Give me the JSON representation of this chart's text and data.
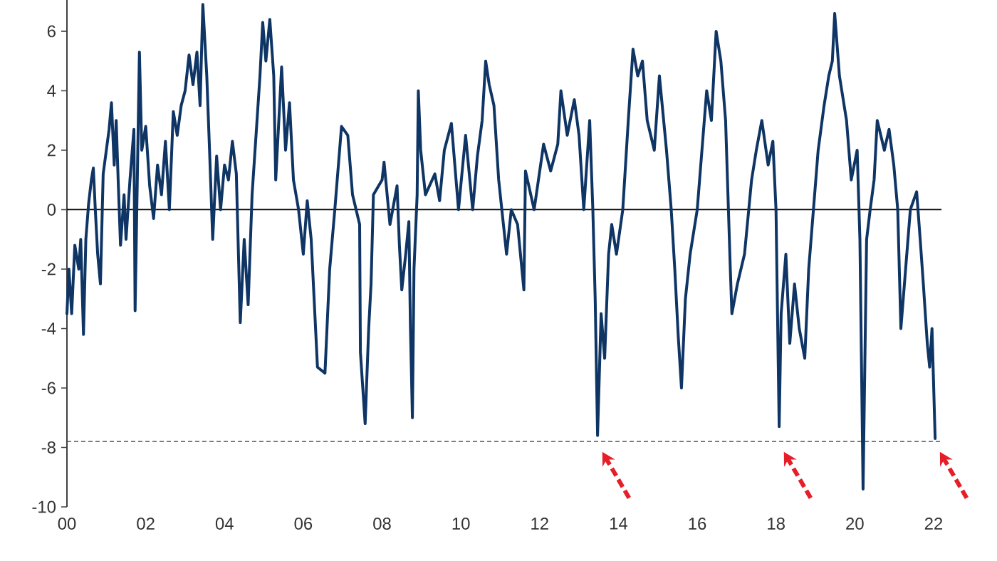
{
  "chart_data": {
    "type": "line",
    "x": [
      0.0,
      0.05,
      0.12,
      0.2,
      0.3,
      0.35,
      0.42,
      0.48,
      0.55,
      0.62,
      0.67,
      0.72,
      0.78,
      0.85,
      0.92,
      1.0,
      1.07,
      1.13,
      1.2,
      1.25,
      1.3,
      1.36,
      1.45,
      1.5,
      1.6,
      1.7,
      1.73,
      1.78,
      1.84,
      1.9,
      2.0,
      2.1,
      2.2,
      2.3,
      2.4,
      2.5,
      2.6,
      2.7,
      2.8,
      2.9,
      3.0,
      3.1,
      3.2,
      3.3,
      3.38,
      3.45,
      3.55,
      3.62,
      3.7,
      3.8,
      3.9,
      4.0,
      4.1,
      4.2,
      4.3,
      4.4,
      4.5,
      4.6,
      4.7,
      4.8,
      4.9,
      4.97,
      5.05,
      5.15,
      5.25,
      5.3,
      5.45,
      5.55,
      5.65,
      5.75,
      5.88,
      6.0,
      6.1,
      6.2,
      6.36,
      6.55,
      6.67,
      6.8,
      6.97,
      7.13,
      7.25,
      7.43,
      7.45,
      7.57,
      7.66,
      7.72,
      7.78,
      8.0,
      8.05,
      8.2,
      8.38,
      8.44,
      8.5,
      8.6,
      8.68,
      8.72,
      8.77,
      8.81,
      8.89,
      8.92,
      8.98,
      9.1,
      9.34,
      9.46,
      9.58,
      9.76,
      9.94,
      10.12,
      10.3,
      10.42,
      10.54,
      10.63,
      10.72,
      10.84,
      10.96,
      11.08,
      11.16,
      11.28,
      11.44,
      11.6,
      11.64,
      11.86,
      12.1,
      12.28,
      12.46,
      12.54,
      12.7,
      12.88,
      13.0,
      13.12,
      13.27,
      13.35,
      13.41,
      13.47,
      13.56,
      13.65,
      13.75,
      13.83,
      13.95,
      14.11,
      14.25,
      14.37,
      14.49,
      14.61,
      14.73,
      14.91,
      15.04,
      15.22,
      15.34,
      15.43,
      15.52,
      15.6,
      15.7,
      15.82,
      16.0,
      16.12,
      16.24,
      16.36,
      16.48,
      16.6,
      16.72,
      16.84,
      16.88,
      17.02,
      17.2,
      17.38,
      17.5,
      17.64,
      17.8,
      17.92,
      18.0,
      18.08,
      18.13,
      18.25,
      18.35,
      18.47,
      18.59,
      18.73,
      18.83,
      18.95,
      19.07,
      19.22,
      19.34,
      19.43,
      19.49,
      19.61,
      19.79,
      19.91,
      20.06,
      20.13,
      20.21,
      20.3,
      20.39,
      20.49,
      20.57,
      20.75,
      20.87,
      20.99,
      21.09,
      21.17,
      21.29,
      21.41,
      21.57,
      21.66,
      21.74,
      21.84,
      21.9,
      21.96,
      22.04
    ],
    "series": [
      {
        "color": "#0f3565",
        "values": [
          -3.5,
          -2.0,
          -3.5,
          -1.2,
          -2.0,
          -1.0,
          -4.2,
          -1.0,
          0.2,
          1.0,
          1.4,
          0.0,
          -1.5,
          -2.5,
          1.2,
          2.0,
          2.7,
          3.6,
          1.5,
          3.0,
          1.0,
          -1.2,
          0.5,
          -1.0,
          1.0,
          2.7,
          -3.4,
          0.5,
          5.3,
          2.0,
          2.8,
          0.8,
          -0.3,
          1.5,
          0.5,
          2.3,
          0.0,
          3.3,
          2.5,
          3.5,
          4.0,
          5.2,
          4.2,
          5.3,
          3.5,
          6.9,
          4.5,
          2.0,
          -1.0,
          1.8,
          0.0,
          1.5,
          1.0,
          2.3,
          1.2,
          -3.8,
          -1.0,
          -3.2,
          0.5,
          2.5,
          4.5,
          6.3,
          5.0,
          6.4,
          4.5,
          1.0,
          4.8,
          2.0,
          3.6,
          1.0,
          0.0,
          -1.5,
          0.3,
          -1.0,
          -5.3,
          -5.5,
          -2.0,
          0.0,
          2.8,
          2.5,
          0.5,
          -0.5,
          -4.8,
          -7.2,
          -4.0,
          -2.5,
          0.5,
          1.0,
          1.6,
          -0.5,
          0.8,
          -1.2,
          -2.7,
          -1.5,
          -0.4,
          -4.0,
          -7.0,
          -2.0,
          0.5,
          4.0,
          2.0,
          0.5,
          1.2,
          0.3,
          2.0,
          2.9,
          0.0,
          2.5,
          0.0,
          1.8,
          3.0,
          5.0,
          4.2,
          3.5,
          1.0,
          -0.5,
          -1.5,
          0.0,
          -0.5,
          -2.7,
          1.3,
          0.0,
          2.2,
          1.3,
          2.2,
          4.0,
          2.5,
          3.7,
          2.5,
          0.0,
          3.0,
          0.0,
          -3.0,
          -7.6,
          -3.5,
          -5.0,
          -1.5,
          -0.5,
          -1.5,
          0.0,
          3.0,
          5.4,
          4.5,
          5.0,
          3.0,
          2.0,
          4.5,
          2.0,
          0.0,
          -2.0,
          -4.3,
          -6.0,
          -3.0,
          -1.5,
          0.0,
          2.0,
          4.0,
          3.0,
          6.0,
          5.0,
          3.0,
          -2.0,
          -3.5,
          -2.5,
          -1.5,
          1.0,
          2.0,
          3.0,
          1.5,
          2.3,
          0.0,
          -7.3,
          -3.5,
          -1.5,
          -4.5,
          -2.5,
          -4.0,
          -5.0,
          -2.0,
          0.0,
          2.0,
          3.5,
          4.5,
          5.0,
          6.6,
          4.5,
          3.0,
          1.0,
          2.0,
          -1.0,
          -9.4,
          -1.0,
          0.0,
          1.0,
          3.0,
          2.0,
          2.7,
          1.5,
          0.0,
          -4.0,
          -2.0,
          0.0,
          0.6,
          -1.0,
          -2.5,
          -4.5,
          -5.3,
          -4.0,
          -7.7
        ]
      }
    ],
    "xlim": [
      0,
      22.2
    ],
    "ylim": [
      -10,
      7.1
    ],
    "xticks": [
      {
        "value": 0,
        "label": "00"
      },
      {
        "value": 2,
        "label": "02"
      },
      {
        "value": 4,
        "label": "04"
      },
      {
        "value": 6,
        "label": "06"
      },
      {
        "value": 8,
        "label": "08"
      },
      {
        "value": 10,
        "label": "10"
      },
      {
        "value": 12,
        "label": "12"
      },
      {
        "value": 14,
        "label": "14"
      },
      {
        "value": 16,
        "label": "16"
      },
      {
        "value": 18,
        "label": "18"
      },
      {
        "value": 20,
        "label": "20"
      },
      {
        "value": 22,
        "label": "22"
      }
    ],
    "yticks": [
      -10,
      -8,
      -6,
      -4,
      -2,
      0,
      2,
      4,
      6
    ],
    "ref_lines": [
      {
        "axis": "y",
        "value": 0,
        "color": "#000000",
        "line_style": "solid"
      },
      {
        "axis": "y",
        "value": -7.8,
        "color": "#1f3f6e",
        "line_style": "dashed"
      }
    ]
  }
}
